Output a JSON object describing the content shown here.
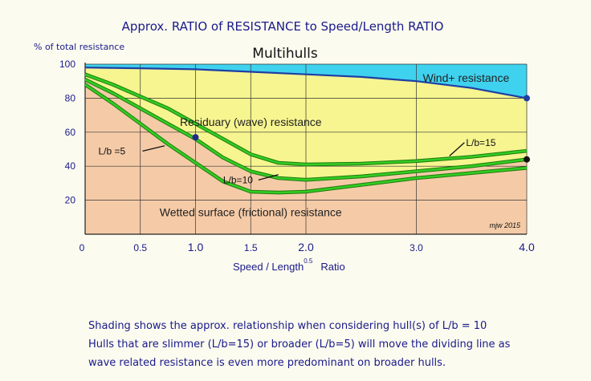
{
  "chart_data": {
    "type": "area",
    "title": "Approx. RATIO of RESISTANCE to Speed/Length RATIO",
    "subtitle": "Multihulls",
    "ylabel": "% of total resistance",
    "xlabel": "Speed / Length",
    "xlabel_superscript": "0.5",
    "xlabel_suffix": "Ratio",
    "xlim": [
      0,
      4.0
    ],
    "ylim": [
      0,
      100
    ],
    "y_ticks": [
      {
        "value": 100,
        "label": "100"
      },
      {
        "value": 80,
        "label": "80"
      },
      {
        "value": 60,
        "label": "60"
      },
      {
        "value": 40,
        "label": "40"
      },
      {
        "value": 20,
        "label": "20"
      }
    ],
    "x_ticks": [
      {
        "value": 0,
        "label": "0",
        "big": false
      },
      {
        "value": 0.5,
        "label": "0.5",
        "big": false
      },
      {
        "value": 1.0,
        "label": "1.0",
        "big": true
      },
      {
        "value": 1.5,
        "label": "1.5",
        "big": false
      },
      {
        "value": 2.0,
        "label": "2.0",
        "big": true
      },
      {
        "value": 3.0,
        "label": "3.0",
        "big": false
      },
      {
        "value": 4.0,
        "label": "4.0",
        "big": true
      }
    ],
    "grid": true,
    "regions": [
      {
        "label": "Wind+ resistance",
        "color": "#3fd2ee",
        "label_at": [
          3.45,
          92
        ]
      },
      {
        "label": "Residuary (wave) resistance",
        "color": "#f6f590",
        "label_at": [
          1.5,
          66
        ]
      },
      {
        "label": "Wetted surface (frictional) resistance",
        "color": "#f5cba7",
        "label_at": [
          1.5,
          13
        ]
      }
    ],
    "wind_boundary": {
      "color": "#1f3fa3",
      "x": [
        0,
        0.5,
        1.0,
        1.5,
        2.0,
        2.5,
        3.0,
        3.5,
        4.0
      ],
      "y": [
        98,
        97.6,
        97,
        95.5,
        94,
        92.5,
        90,
        86,
        80
      ]
    },
    "series": [
      {
        "name": "L/b =5",
        "label": "L/b =5",
        "color": "#33cc22",
        "x": [
          0,
          0.25,
          0.5,
          0.75,
          1.0,
          1.25,
          1.5,
          1.75,
          2.0,
          2.5,
          3.0,
          3.5,
          4.0
        ],
        "y": [
          88,
          77,
          65,
          53,
          42,
          31,
          25,
          24.5,
          25,
          29,
          33,
          36,
          39
        ]
      },
      {
        "name": "L/b=10",
        "label": "L/b=10",
        "color": "#33cc22",
        "x": [
          0,
          0.25,
          0.5,
          0.75,
          1.0,
          1.25,
          1.5,
          1.75,
          2.0,
          2.5,
          3.0,
          3.5,
          4.0
        ],
        "y": [
          91,
          83,
          74,
          65,
          56,
          45,
          37,
          33,
          32,
          34,
          37,
          40,
          44
        ]
      },
      {
        "name": "L/b=15",
        "label": "L/b=15",
        "color": "#33cc22",
        "x": [
          0,
          0.25,
          0.5,
          0.75,
          1.0,
          1.25,
          1.5,
          1.75,
          2.0,
          2.5,
          3.0,
          3.5,
          4.0
        ],
        "y": [
          94,
          88,
          81,
          74,
          65,
          56,
          47,
          42,
          41,
          41.5,
          43,
          45.5,
          49
        ]
      }
    ],
    "markers": [
      {
        "x": 1.0,
        "y": 57,
        "color": "#1f2a8c"
      },
      {
        "x": 4.0,
        "y": 80,
        "color": "#1f3fa3"
      },
      {
        "x": 4.0,
        "y": 44,
        "color": "#111111"
      }
    ],
    "annotation": "mjw 2015",
    "caption": [
      "Shading shows the approx. relationship when considering hull(s) of L/b = 10",
      "Hulls that are slimmer (L/b=15) or broader (L/b=5)  will move the dividing line as",
      "wave related resistance is even more predominant on broader hulls."
    ]
  }
}
